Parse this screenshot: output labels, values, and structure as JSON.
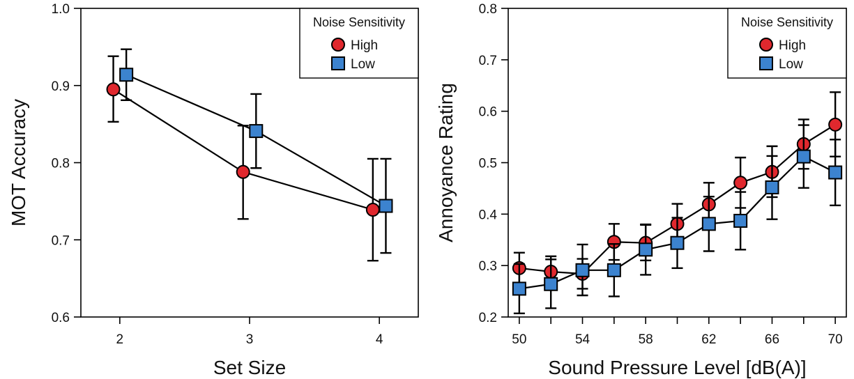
{
  "chart_data": [
    {
      "type": "line",
      "title": "",
      "xlabel": "Set Size",
      "ylabel": "MOT Accuracy",
      "x": [
        2,
        3,
        4
      ],
      "xticks": [
        2,
        3,
        4
      ],
      "xlim": [
        1.7,
        4.3
      ],
      "ylim": [
        0.6,
        1.0
      ],
      "yticks": [
        "0.6",
        "0.7",
        "0.8",
        "0.9",
        "1.0"
      ],
      "grid": false,
      "legend": {
        "title": "Noise Sensitivity",
        "placement": "top-right"
      },
      "series": [
        {
          "name": "High",
          "marker": "circle",
          "color": "#e0282e",
          "values": [
            0.895,
            0.788,
            0.739
          ],
          "err_low": [
            0.853,
            0.727,
            0.673
          ],
          "err_high": [
            0.938,
            0.848,
            0.805
          ]
        },
        {
          "name": "Low",
          "marker": "square",
          "color": "#3c83cf",
          "values": [
            0.914,
            0.841,
            0.744
          ],
          "err_low": [
            0.881,
            0.793,
            0.683
          ],
          "err_high": [
            0.947,
            0.889,
            0.805
          ]
        }
      ]
    },
    {
      "type": "line",
      "title": "",
      "xlabel": "Sound Pressure Level [dB(A)]",
      "ylabel": "Annoyance Rating",
      "x": [
        50,
        52,
        54,
        56,
        58,
        60,
        62,
        64,
        66,
        68,
        70
      ],
      "xticks": [
        50,
        54,
        58,
        62,
        66,
        70
      ],
      "xlim": [
        49.3,
        70.7
      ],
      "ylim": [
        0.2,
        0.8
      ],
      "yticks": [
        "0.2",
        "0.3",
        "0.4",
        "0.5",
        "0.6",
        "0.7",
        "0.8"
      ],
      "grid": false,
      "legend": {
        "title": "Noise Sensitivity",
        "placement": "top-right"
      },
      "series": [
        {
          "name": "High",
          "marker": "circle",
          "color": "#e0282e",
          "values": [
            0.295,
            0.288,
            0.284,
            0.346,
            0.344,
            0.381,
            0.419,
            0.461,
            0.482,
            0.536,
            0.574
          ],
          "err_low": [
            0.265,
            0.258,
            0.255,
            0.311,
            0.31,
            0.342,
            0.376,
            0.412,
            0.433,
            0.488,
            0.512
          ],
          "err_high": [
            0.325,
            0.318,
            0.313,
            0.381,
            0.379,
            0.42,
            0.461,
            0.51,
            0.532,
            0.584,
            0.637
          ]
        },
        {
          "name": "Low",
          "marker": "square",
          "color": "#3c83cf",
          "values": [
            0.255,
            0.264,
            0.291,
            0.291,
            0.331,
            0.344,
            0.381,
            0.387,
            0.452,
            0.512,
            0.481
          ],
          "err_low": [
            0.207,
            0.217,
            0.242,
            0.24,
            0.282,
            0.295,
            0.328,
            0.331,
            0.39,
            0.451,
            0.417
          ],
          "err_high": [
            0.303,
            0.312,
            0.341,
            0.342,
            0.38,
            0.393,
            0.434,
            0.443,
            0.513,
            0.573,
            0.545
          ]
        }
      ]
    }
  ]
}
